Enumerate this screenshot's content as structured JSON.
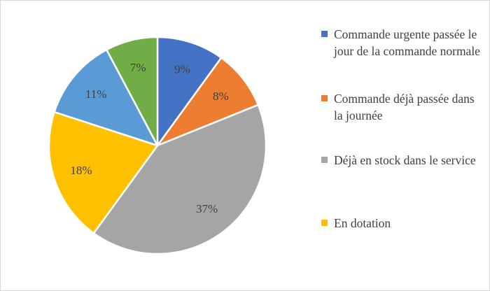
{
  "chart_data": {
    "type": "pie",
    "title": "",
    "slices": [
      {
        "label": "Commande urgente passée le jour de la commande normale",
        "value": 9,
        "display": "9%",
        "color": "#4472C4"
      },
      {
        "label": "Commande déjà passée dans la journée",
        "value": 8,
        "display": "8%",
        "color": "#ED7D31"
      },
      {
        "label": "Déjà en stock dans le service",
        "value": 37,
        "display": "37%",
        "color": "#A5A5A5"
      },
      {
        "label": "En dotation",
        "value": 18,
        "display": "18%",
        "color": "#FFC000"
      },
      {
        "label": "",
        "value": 11,
        "display": "11%",
        "color": "#5B9BD5"
      },
      {
        "label": "",
        "value": 7,
        "display": "7%",
        "color": "#70AD47"
      }
    ],
    "legend": [
      {
        "text": "Commande urgente passée le jour de la commande normale",
        "color": "#4472C4"
      },
      {
        "text": "Commande déjà passée dans la journée",
        "color": "#ED7D31"
      },
      {
        "text": "Déjà en stock dans le service",
        "color": "#A5A5A5"
      },
      {
        "text": "En dotation",
        "color": "#FFC000"
      }
    ],
    "legend_position": "right",
    "start_angle": "12 o'clock",
    "direction": "clockwise"
  }
}
